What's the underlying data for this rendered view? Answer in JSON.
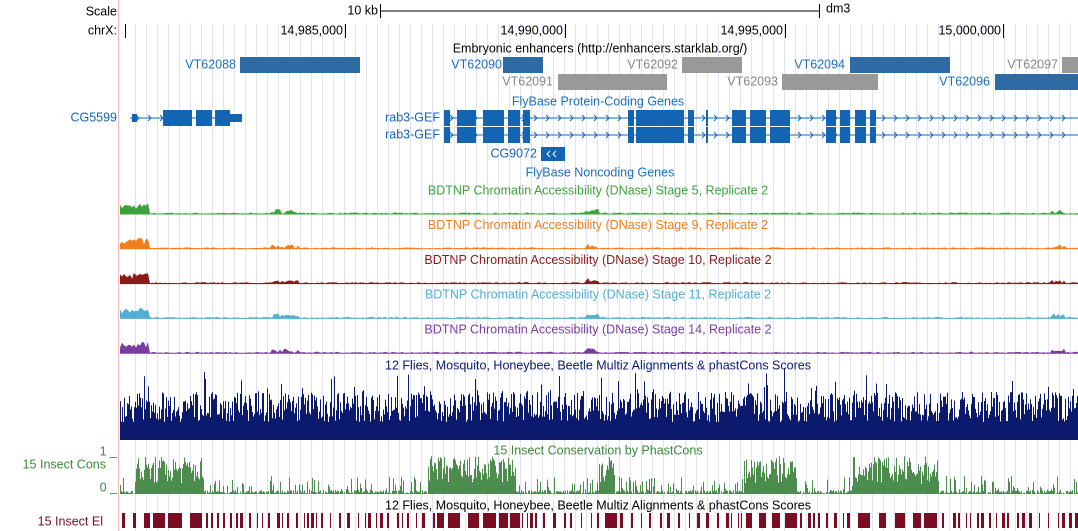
{
  "header": {
    "scale_label": "Scale",
    "chrom_label": "chrX:",
    "scale_bar": "10 kb",
    "assembly": "dm3"
  },
  "ruler_ticks": [
    "14,985,000",
    "14,990,000",
    "14,995,000",
    "15,000,000"
  ],
  "enhancers": {
    "title": "Embryonic enhancers (http://enhancers.starklab.org/)",
    "features": [
      "VT62088",
      "VT62090",
      "VT62092",
      "VT62094",
      "VT62097",
      "VT62091",
      "VT62093",
      "VT62096"
    ]
  },
  "genes": {
    "title": "FlyBase Protein-Coding Genes",
    "names": [
      "CG5599",
      "rab3-GEF",
      "rab3-GEF",
      "CG9072"
    ]
  },
  "noncoding": {
    "title": "FlyBase Noncoding Genes"
  },
  "dnase_tracks": [
    "BDTNP Chromatin Accessibility (DNase) Stage 5, Replicate 2",
    "BDTNP Chromatin Accessibility (DNase) Stage 9, Replicate 2",
    "BDTNP Chromatin Accessibility (DNase) Stage 10, Replicate 2",
    "BDTNP Chromatin Accessibility (DNase) Stage 11, Replicate 2",
    "BDTNP Chromatin Accessibility (DNase) Stage 14, Replicate 2"
  ],
  "conservation": {
    "title": "12 Flies, Mosquito, Honeybee, Beetle Multiz Alignments & phastCons Scores",
    "phastcons_title": "15 Insect Conservation by PhastCons",
    "left_label": "15 Insect Cons",
    "axis_max": "1 _",
    "axis_min": "0 _",
    "elements_title": "12 Flies, Mosquito, Honeybee, Beetle Multiz Alignments & phastCons Scores",
    "elements_label": "15 Insect El"
  }
}
